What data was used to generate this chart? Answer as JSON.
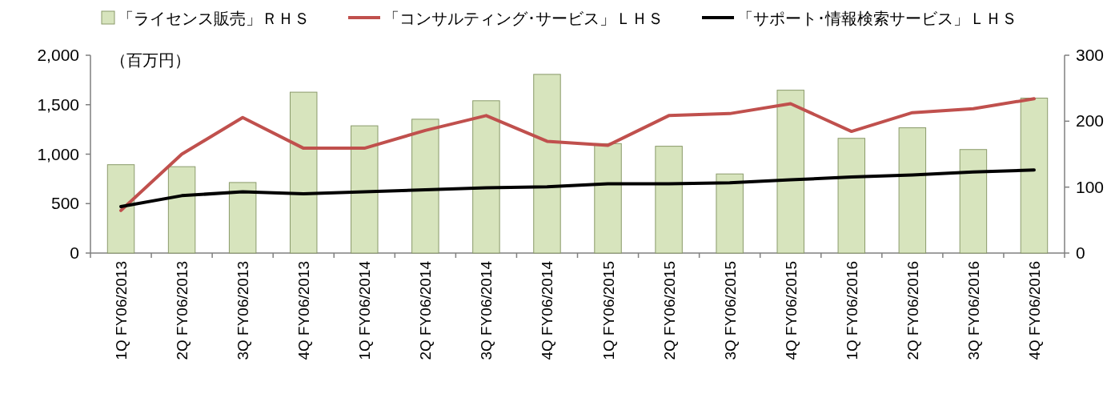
{
  "chart_data": {
    "type": "bar",
    "categories": [
      "1Q FY06/2013",
      "2Q FY06/2013",
      "3Q FY06/2013",
      "4Q FY06/2013",
      "1Q FY06/2014",
      "2Q FY06/2014",
      "3Q FY06/2014",
      "4Q FY06/2014",
      "1Q FY06/2015",
      "2Q FY06/2015",
      "3Q FY06/2015",
      "4Q FY06/2015",
      "1Q FY06/2016",
      "2Q FY06/2016",
      "3Q FY06/2016",
      "4Q FY06/2016"
    ],
    "series": [
      {
        "name": "「ライセンス販売」ＲＨＳ",
        "axis": "y2",
        "color": "#d7e4bd",
        "values": [
          134,
          131,
          107,
          244,
          193,
          203,
          231,
          271,
          166,
          162,
          120,
          247,
          174,
          190,
          157,
          235
        ]
      },
      {
        "name": "「コンサルティング･サービス」ＬＨＳ",
        "type": "line",
        "color": "#c0504d",
        "values": [
          430,
          1000,
          1370,
          1060,
          1060,
          1240,
          1390,
          1130,
          1090,
          1390,
          1410,
          1510,
          1230,
          1420,
          1460,
          1560
        ]
      },
      {
        "name": "「サポート･情報検索サービス」ＬＨＳ",
        "type": "line",
        "color": "#000000",
        "values": [
          470,
          580,
          620,
          600,
          620,
          640,
          660,
          670,
          700,
          700,
          710,
          740,
          770,
          790,
          820,
          840
        ]
      }
    ],
    "ylim": [
      0,
      2000
    ],
    "yticks": [
      0,
      500,
      {
        "value": 1000,
        "label": "1,000"
      },
      {
        "value": 1500,
        "label": "1,500"
      },
      {
        "value": 2000,
        "label": "2,000"
      }
    ],
    "y2lim": [
      0,
      300
    ],
    "y2ticks": [
      0,
      100,
      200,
      300
    ],
    "annotations": [
      "（百万円）"
    ],
    "legend": "top",
    "grid": false,
    "marker": "none"
  }
}
